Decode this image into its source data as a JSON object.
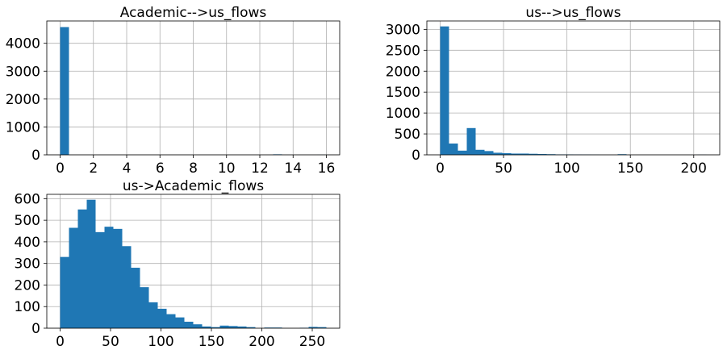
{
  "chart_data": [
    {
      "type": "bar",
      "title": "Academic-->us_flows",
      "xlabel": "",
      "ylabel": "",
      "grid": true,
      "bar_color": "#1f77b4",
      "xlim": [
        -0.8,
        16.8
      ],
      "ylim": [
        0,
        4800
      ],
      "xticks": [
        0,
        2,
        4,
        6,
        8,
        10,
        12,
        14,
        16
      ],
      "yticks": [
        0,
        1000,
        2000,
        3000,
        4000
      ],
      "bin_edges": [
        0,
        0.5333,
        1.0667,
        1.6,
        2.1333,
        2.6667,
        3.2,
        3.7333,
        4.2667,
        4.8,
        5.3333,
        5.8667,
        6.4,
        6.9333,
        7.4667,
        8.0,
        8.5333,
        9.0667,
        9.6,
        10.1333,
        10.6667,
        11.2,
        11.7333,
        12.2667,
        12.8,
        13.3333,
        13.8667,
        14.4,
        14.9333,
        15.4667,
        16.0
      ],
      "counts": [
        4580,
        0,
        0,
        0,
        0,
        0,
        0,
        0,
        0,
        0,
        0,
        0,
        0,
        0,
        0,
        0,
        0,
        0,
        0,
        0,
        0,
        0,
        0,
        0,
        18,
        0,
        0,
        0,
        0,
        3
      ]
    },
    {
      "type": "bar",
      "title": "us-->us_flows",
      "xlabel": "",
      "ylabel": "",
      "grid": true,
      "bar_color": "#1f77b4",
      "xlim": [
        -10.5,
        220.5
      ],
      "ylim": [
        0,
        3200
      ],
      "xticks": [
        0,
        50,
        100,
        150,
        200
      ],
      "yticks": [
        0,
        500,
        1000,
        1500,
        2000,
        2500,
        3000
      ],
      "bin_edges": [
        0,
        7,
        14,
        21,
        28,
        35,
        42,
        49,
        56,
        63,
        70,
        77,
        84,
        91,
        98,
        105,
        112,
        119,
        126,
        133,
        140,
        147,
        154,
        161,
        168,
        175,
        182,
        189,
        196,
        203,
        210
      ],
      "counts": [
        3070,
        270,
        100,
        640,
        120,
        90,
        50,
        40,
        30,
        30,
        25,
        20,
        15,
        10,
        10,
        8,
        6,
        4,
        0,
        0,
        15,
        0,
        0,
        0,
        0,
        0,
        0,
        0,
        0,
        3
      ]
    },
    {
      "type": "bar",
      "title": "us->Academic_flows",
      "xlabel": "",
      "ylabel": "",
      "grid": true,
      "bar_color": "#1f77b4",
      "xlim": [
        -13.2,
        277.2
      ],
      "ylim": [
        0,
        620
      ],
      "xticks": [
        0,
        50,
        100,
        150,
        200,
        250
      ],
      "yticks": [
        0,
        100,
        200,
        300,
        400,
        500,
        600
      ],
      "bin_edges": [
        0,
        8.8,
        17.6,
        26.4,
        35.2,
        44,
        52.8,
        61.6,
        70.4,
        79.2,
        88,
        96.8,
        105.6,
        114.4,
        123.2,
        132,
        140.8,
        149.6,
        158.4,
        167.2,
        176,
        184.8,
        193.6,
        202.4,
        211.2,
        220,
        228.8,
        237.6,
        246.4,
        255.2,
        264
      ],
      "counts": [
        330,
        465,
        550,
        595,
        445,
        470,
        460,
        380,
        280,
        190,
        120,
        90,
        65,
        50,
        30,
        18,
        8,
        5,
        12,
        10,
        8,
        5,
        0,
        3,
        3,
        0,
        0,
        2,
        6,
        5
      ]
    }
  ]
}
